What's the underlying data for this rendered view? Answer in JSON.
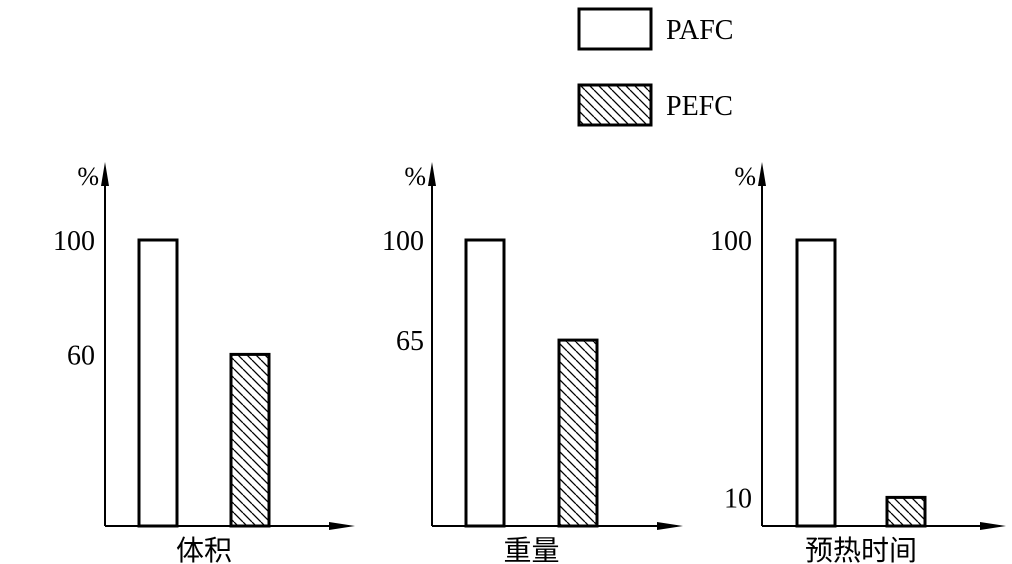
{
  "legend": [
    {
      "name": "PAFC",
      "fill": "plain"
    },
    {
      "name": "PEFC",
      "fill": "hatched"
    }
  ],
  "chart_data": [
    {
      "type": "bar",
      "categories": [
        "体积"
      ],
      "series": [
        {
          "name": "PAFC",
          "values": [
            100
          ]
        },
        {
          "name": "PEFC",
          "values": [
            60
          ]
        }
      ],
      "ylabel": "%",
      "yticks": [
        100,
        60
      ],
      "ylim": [
        0,
        125
      ]
    },
    {
      "type": "bar",
      "categories": [
        "重量"
      ],
      "series": [
        {
          "name": "PAFC",
          "values": [
            100
          ]
        },
        {
          "name": "PEFC",
          "values": [
            65
          ]
        }
      ],
      "ylabel": "%",
      "yticks": [
        100,
        65
      ],
      "ylim": [
        0,
        125
      ]
    },
    {
      "type": "bar",
      "categories": [
        "预热时间"
      ],
      "series": [
        {
          "name": "PAFC",
          "values": [
            100
          ]
        },
        {
          "name": "PEFC",
          "values": [
            10
          ]
        }
      ],
      "ylabel": "%",
      "yticks": [
        100,
        10
      ],
      "ylim": [
        0,
        125
      ]
    }
  ],
  "colors": {
    "stroke": "#000000",
    "background": "#ffffff"
  }
}
